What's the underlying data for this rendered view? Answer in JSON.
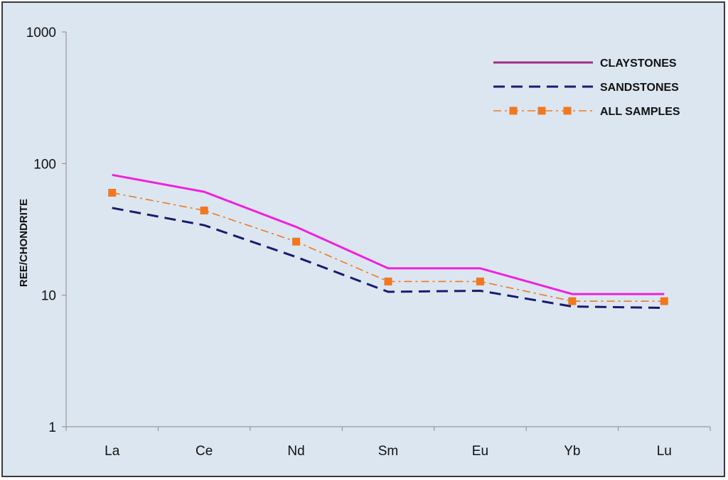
{
  "chart_data": {
    "type": "line",
    "title": "",
    "xlabel": "",
    "ylabel": "REE/CHONDRITE",
    "yscale": "log",
    "ylim": [
      1,
      1000
    ],
    "yticks": [
      "1",
      "10",
      "100",
      "1000"
    ],
    "categories": [
      "La",
      "Ce",
      "Nd",
      "Sm",
      "Eu",
      "Yb",
      "Lu"
    ],
    "grid": false,
    "legend_position": "top-right",
    "series": [
      {
        "name": "CLAYSTONES",
        "color": "#ee22dd",
        "style": "solid",
        "marker": "none",
        "values": [
          82,
          61,
          33,
          16,
          16,
          10.2,
          10.2
        ]
      },
      {
        "name": "SANDSTONES",
        "color": "#1a1a6e",
        "style": "dashed",
        "marker": "none",
        "values": [
          46,
          34,
          19.5,
          10.6,
          10.8,
          8.2,
          8.0
        ]
      },
      {
        "name": "ALL SAMPLES",
        "color": "#f07820",
        "style": "dash-dot",
        "marker": "square",
        "values": [
          60,
          44,
          25.5,
          12.7,
          12.7,
          9.0,
          9.0
        ]
      }
    ]
  },
  "legend_colors": {
    "claystones_swatch": "#a0307f"
  }
}
